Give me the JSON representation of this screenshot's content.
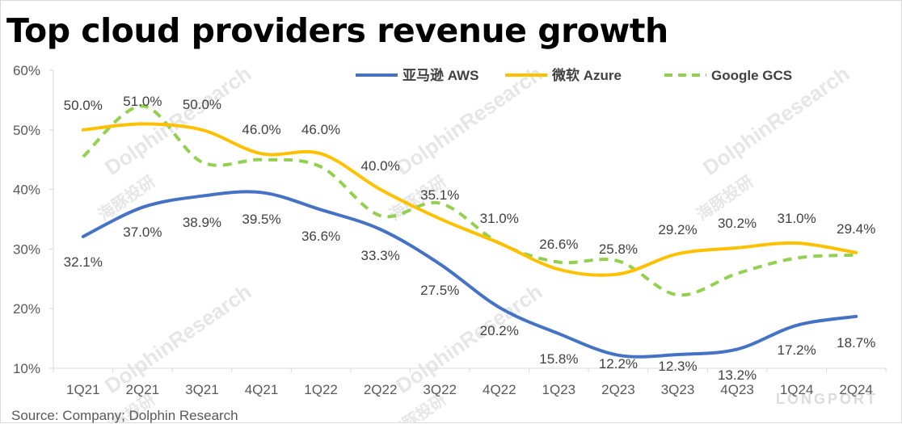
{
  "title": "Top cloud providers revenue growth",
  "source": "Source: Company; Dolphin Research",
  "watermark": {
    "cn": "海豚投研",
    "en": "DolphinResearch",
    "corner": "LONGPORT"
  },
  "chart_data": {
    "type": "line",
    "categories": [
      "1Q21",
      "2Q21",
      "3Q21",
      "4Q21",
      "1Q22",
      "2Q22",
      "3Q22",
      "4Q22",
      "1Q23",
      "2Q23",
      "3Q23",
      "4Q23",
      "1Q24",
      "2Q24"
    ],
    "ylim": [
      10,
      60
    ],
    "yticks": [
      10,
      20,
      30,
      40,
      50,
      60
    ],
    "ytick_labels": [
      "10%",
      "20%",
      "30%",
      "40%",
      "50%",
      "60%"
    ],
    "legend_position": "top-right",
    "series": [
      {
        "name": "亚马逊 AWS",
        "color": "#4472C4",
        "style": "solid",
        "values": [
          32.1,
          37.0,
          38.9,
          39.5,
          36.6,
          33.3,
          27.5,
          20.2,
          15.8,
          12.2,
          12.3,
          13.2,
          17.2,
          18.7
        ],
        "labels": [
          "32.1%",
          "37.0%",
          "38.9%",
          "39.5%",
          "36.6%",
          "33.3%",
          "27.5%",
          "20.2%",
          "15.8%",
          "12.2%",
          "12.3%",
          "13.2%",
          "17.2%",
          "18.7%"
        ]
      },
      {
        "name": "微软 Azure",
        "color": "#FFC000",
        "style": "solid",
        "values": [
          50.0,
          51.0,
          50.0,
          46.0,
          46.0,
          40.0,
          35.1,
          31.0,
          26.6,
          25.8,
          29.2,
          30.2,
          31.0,
          29.4
        ],
        "labels": [
          "50.0%",
          "51.0%",
          "50.0%",
          "46.0%",
          "46.0%",
          "40.0%",
          "35.1%",
          "31.0%",
          "26.6%",
          "25.8%",
          "29.2%",
          "30.2%",
          "31.0%",
          "29.4%"
        ]
      },
      {
        "name": "Google GCS",
        "color": "#92D050",
        "style": "dashed",
        "values": [
          45.5,
          54.0,
          44.6,
          45.0,
          43.8,
          35.6,
          37.7,
          31.0,
          27.8,
          28.0,
          22.3,
          25.9,
          28.5,
          29.0
        ],
        "labels": []
      }
    ]
  }
}
